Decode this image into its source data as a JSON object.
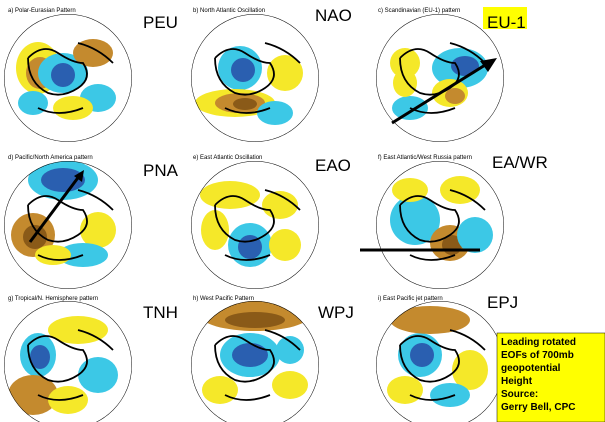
{
  "panels": [
    {
      "caption": "a) Polar-Eurasian Pattern",
      "label": "PEU"
    },
    {
      "caption": "b) North Atlantic Oscillation",
      "label": "NAO"
    },
    {
      "caption": "c) Scandinavian (EU-1) pattern",
      "label": "EU-1"
    },
    {
      "caption": "d) Pacific/North America pattern",
      "label": "PNA"
    },
    {
      "caption": "e) East Atlantic Oscillation",
      "label": "EAO"
    },
    {
      "caption": "f) East Atlantic/West Russia pattern",
      "label": "EA/WR"
    },
    {
      "caption": "g) Tropical/N. Hemisphere pattern",
      "label": "TNH"
    },
    {
      "caption": "h) West Pacific Pattern",
      "label": "WPJ"
    },
    {
      "caption": "i) East Pacific jet pattern",
      "label": "EPJ"
    }
  ],
  "note": {
    "lines": [
      "Leading rotated",
      "EOFs of 700mb",
      "geopotential",
      "Height",
      "Source:",
      "Gerry Bell, CPC"
    ]
  }
}
